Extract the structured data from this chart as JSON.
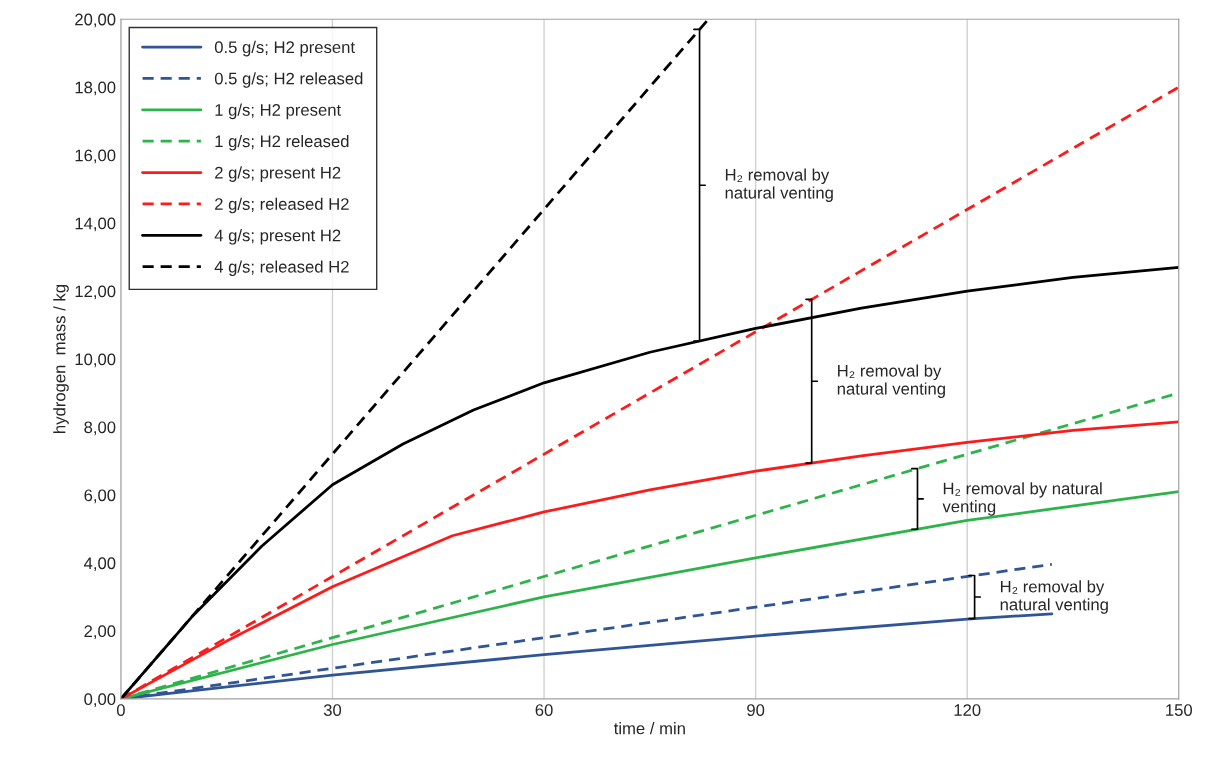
{
  "chart_data": {
    "type": "line",
    "xlabel": "time / min",
    "ylabel": "hydrogen  mass / kg",
    "xlim": [
      0,
      150
    ],
    "xticks": [
      0,
      30,
      60,
      90,
      120,
      150
    ],
    "ylim": [
      0,
      20
    ],
    "yticks": [
      {
        "value": 0,
        "label": "0,00"
      },
      {
        "value": 2,
        "label": "2,00"
      },
      {
        "value": 4,
        "label": "4,00"
      },
      {
        "value": 6,
        "label": "6,00"
      },
      {
        "value": 8,
        "label": "8,00"
      },
      {
        "value": 10,
        "label": "10,00"
      },
      {
        "value": 12,
        "label": "12,00"
      },
      {
        "value": 14,
        "label": "14,00"
      },
      {
        "value": 16,
        "label": "16,00"
      },
      {
        "value": 18,
        "label": "18,00"
      },
      {
        "value": 20,
        "label": "20,00"
      }
    ],
    "grid": "x",
    "legend": "top left",
    "marker": "none",
    "series": [
      {
        "name": "0.5 g/s; H2 present",
        "color": "#2f5597",
        "line_style": "solid",
        "x": [
          0,
          30,
          60,
          90,
          120,
          132
        ],
        "values": [
          0,
          0.7,
          1.3,
          1.85,
          2.35,
          2.5
        ]
      },
      {
        "name": "0.5 g/s; H2 released",
        "color": "#2f5597",
        "line_style": "dashed",
        "x": [
          0,
          132
        ],
        "values": [
          0,
          3.96
        ]
      },
      {
        "name": "1 g/s; H2 present",
        "color": "#2db34a",
        "line_style": "solid",
        "x": [
          0,
          30,
          60,
          90,
          120,
          150
        ],
        "values": [
          0,
          1.6,
          3.0,
          4.15,
          5.25,
          6.1
        ]
      },
      {
        "name": "1 g/s; H2 released",
        "color": "#2db34a",
        "line_style": "dashed",
        "x": [
          0,
          150
        ],
        "values": [
          0,
          9.0
        ]
      },
      {
        "name": "2 g/s; present H2",
        "color": "#ff1a1a",
        "line_style": "solid",
        "x": [
          0,
          15,
          30,
          47,
          60,
          75,
          90,
          105,
          120,
          135,
          150
        ],
        "values": [
          0,
          1.7,
          3.3,
          4.8,
          5.5,
          6.15,
          6.7,
          7.15,
          7.55,
          7.9,
          8.15
        ]
      },
      {
        "name": "2 g/s; released H2",
        "color": "#ff1a1a",
        "line_style": "dashed",
        "x": [
          0,
          150
        ],
        "values": [
          0,
          18.0
        ]
      },
      {
        "name": "4 g/s; present H2",
        "color": "#000000",
        "line_style": "solid",
        "x": [
          0,
          10,
          20,
          30,
          40,
          50,
          60,
          75,
          90,
          105,
          120,
          135,
          150
        ],
        "values": [
          0,
          2.4,
          4.5,
          6.3,
          7.5,
          8.5,
          9.3,
          10.2,
          10.9,
          11.5,
          12.0,
          12.4,
          12.7
        ]
      },
      {
        "name": "4 g/s; released H2",
        "color": "#000000",
        "line_style": "dashed",
        "x": [
          0,
          83.3
        ],
        "values": [
          0,
          20.0
        ]
      }
    ],
    "annotations": [
      "H₂ removal by\nnatural venting",
      "H₂ removal by\nnatural venting",
      "H₂ removal by natural\nventing",
      "H₂ removal by\nnatural venting"
    ]
  }
}
